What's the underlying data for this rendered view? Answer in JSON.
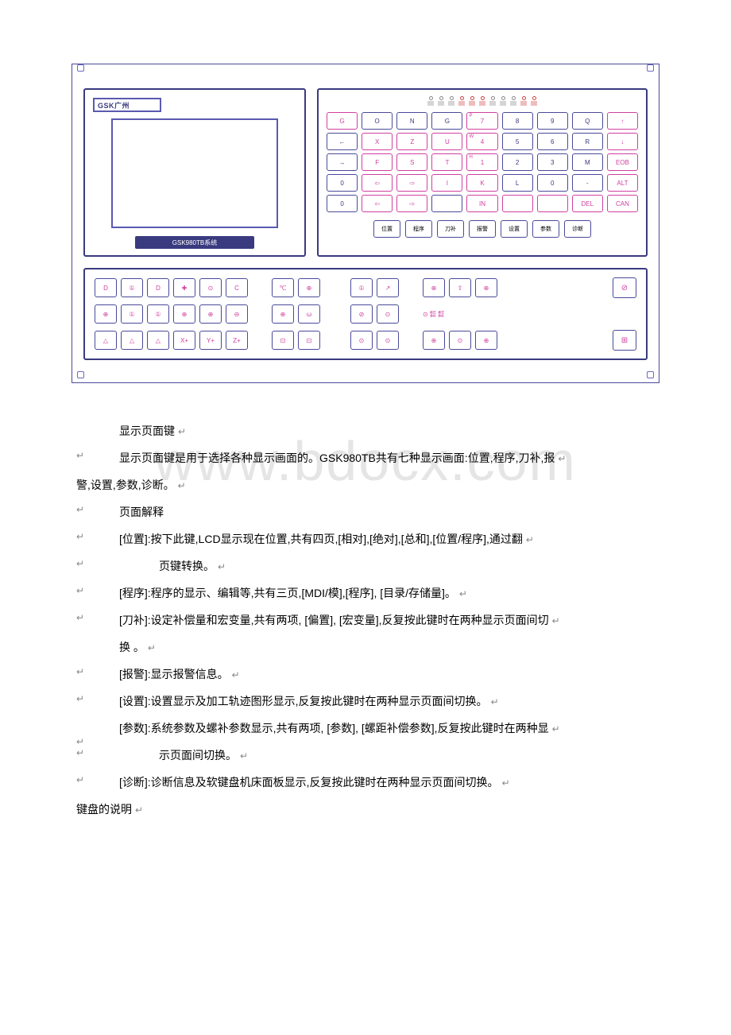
{
  "panel": {
    "brand": "GSK广州",
    "model": "GSK980TB系统",
    "led_colors": [
      "#888888",
      "#888888",
      "#888888",
      "#d04040",
      "#d04040",
      "#d04040",
      "#888888",
      "#888888",
      "#888888",
      "#d04040",
      "#d04040"
    ],
    "keypad_rows": [
      [
        {
          "main": "G",
          "sub": "",
          "pink": true
        },
        {
          "main": "O",
          "sub": ""
        },
        {
          "main": "N",
          "sub": ""
        },
        {
          "main": "G",
          "sub": ""
        },
        {
          "main": "7",
          "sub": "P",
          "pink": true
        },
        {
          "main": "8",
          "sub": ""
        },
        {
          "main": "9",
          "sub": ""
        },
        {
          "main": "Q",
          "sub": ""
        },
        {
          "main": "↑",
          "sub": "",
          "pink": true
        }
      ],
      [
        {
          "main": "←",
          "sub": ""
        },
        {
          "main": "X",
          "sub": "",
          "pink": true
        },
        {
          "main": "Z",
          "sub": "",
          "pink": true
        },
        {
          "main": "U",
          "sub": "",
          "pink": true
        },
        {
          "main": "4",
          "sub": "W",
          "pink": true
        },
        {
          "main": "5",
          "sub": ""
        },
        {
          "main": "6",
          "sub": ""
        },
        {
          "main": "R",
          "sub": ""
        },
        {
          "main": "↓",
          "sub": "",
          "pink": true
        }
      ],
      [
        {
          "main": "→",
          "sub": ""
        },
        {
          "main": "F",
          "sub": "",
          "pink": true
        },
        {
          "main": "S",
          "sub": "",
          "pink": true
        },
        {
          "main": "T",
          "sub": "",
          "pink": true
        },
        {
          "main": "1",
          "sub": "H",
          "pink": true
        },
        {
          "main": "2",
          "sub": ""
        },
        {
          "main": "3",
          "sub": ""
        },
        {
          "main": "M",
          "sub": ""
        },
        {
          "main": "EOB",
          "sub": "",
          "pink": true
        }
      ],
      [
        {
          "main": "0",
          "sub": ""
        },
        {
          "main": "⇦",
          "sub": "",
          "pink": true
        },
        {
          "main": "⇨",
          "sub": "",
          "pink": true
        },
        {
          "main": "I",
          "sub": "",
          "pink": true
        },
        {
          "main": "K",
          "sub": "",
          "pink": true
        },
        {
          "main": "L",
          "sub": ""
        },
        {
          "main": "0",
          "sub": ""
        },
        {
          "main": "-",
          "sub": ""
        },
        {
          "main": "ALT",
          "sub": "",
          "pink": true
        }
      ],
      [
        {
          "main": "0",
          "sub": ""
        },
        {
          "main": "⇦",
          "sub": "",
          "pink": true
        },
        {
          "main": "⇨",
          "sub": "",
          "pink": true
        },
        {
          "main": "",
          "sub": ""
        },
        {
          "main": "IN",
          "sub": "",
          "pink": true
        },
        {
          "main": "",
          "sub": "",
          "pink": true
        },
        {
          "main": "",
          "sub": "",
          "pink": true
        },
        {
          "main": "DEL",
          "sub": "",
          "pink": true
        },
        {
          "main": "CAN",
          "sub": "",
          "pink": true
        }
      ]
    ],
    "fn_keys": [
      "位置",
      "程序",
      "刀补",
      "报警",
      "设置",
      "参数",
      "诊断"
    ],
    "lower_rows": [
      {
        "g1": [
          "D",
          "①",
          "D",
          "✚",
          "⊙",
          "C"
        ],
        "g2": [
          "℃",
          "⊕"
        ],
        "g3": [
          "①",
          "↗"
        ],
        "g4": [
          "⊕",
          "⇧",
          "⊕"
        ],
        "end": "⊘"
      },
      {
        "g1": [
          "⊕",
          "①",
          "①",
          "⊕",
          "⊕",
          "⊖"
        ],
        "g2": [
          "⊕",
          "ω"
        ],
        "g3": [
          "⊘",
          "⊙"
        ],
        "g4_text": "⊙ ㍿ ㍿",
        "end": ""
      },
      {
        "g1": [
          "△",
          "△",
          "△",
          "X+",
          "Y+",
          "Z+"
        ],
        "g2": [
          "⊡",
          "⊡"
        ],
        "g3": [
          "⊙",
          "⊙"
        ],
        "g4": [
          "⊕",
          "⊙",
          "⊕"
        ],
        "end": "⊞"
      }
    ]
  },
  "watermark": "www.bdocx.com",
  "text": {
    "h1": "显示页面键",
    "p1a": "显示页面键是用于选择各种显示画面的。GSK980TB共有七种显示画面:位置,程序,刀补,报",
    "p1b": "警,设置,参数,诊断。",
    "h2": "页面解释",
    "pos1": "[位置]:按下此键,LCD显示现在位置,共有四页,[相对],[绝对],[总和],[位置/程序],通过翻",
    "pos2": "页键转换。",
    "prog": "[程序]:程序的显示、编辑等,共有三页,[MDI/模],[程序],   [目录/存储量]。",
    "tool1": "[刀补]:设定补偿量和宏变量,共有两项, [偏置],    [宏变量],反复按此键时在两种显示页面间切",
    "tool2": "换 。",
    "alarm": "[报警]:显示报警信息。",
    "set": "[设置]:设置显示及加工轨迹图形显示,反复按此键时在两种显示页面间切换。",
    "param1": "[参数]:系统参数及螺补参数显示,共有两项, [参数],    [螺距补偿参数],反复按此键时在两种显",
    "param2": "示页面间切换。",
    "diag": "[诊断]:诊断信息及软键盘机床面板显示,反复按此键时在两种显示页面间切换。",
    "h3": "键盘的说明"
  }
}
